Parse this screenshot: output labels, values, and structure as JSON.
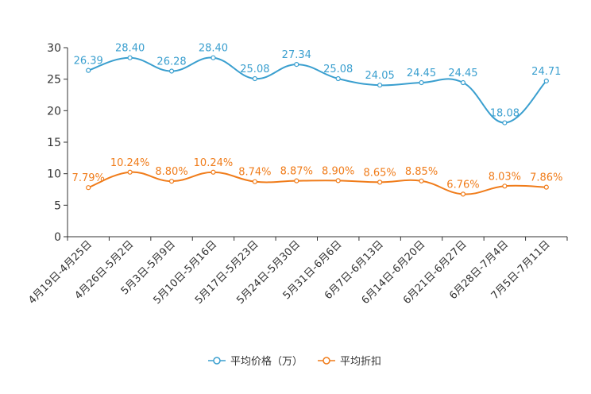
{
  "chart_data": {
    "type": "line",
    "categories": [
      "4月19日-4月25日",
      "4月26日-5月2日",
      "5月3日-5月9日",
      "5月10日-5月16日",
      "5月17日-5月23日",
      "5月24日-5月30日",
      "5月31日-6月6日",
      "6月7日-6月13日",
      "6月14日-6月20日",
      "6月21日-6月27日",
      "6月28日-7月4日",
      "7月5日-7月11日"
    ],
    "ylim": [
      0,
      30
    ],
    "yticks": [
      0,
      5,
      10,
      15,
      20,
      25,
      30
    ],
    "grid": false,
    "legend_position": "bottom-center",
    "series": [
      {
        "name": "平均价格（万）",
        "color": "#3a9fcf",
        "values": [
          26.39,
          28.4,
          26.28,
          28.4,
          25.08,
          27.34,
          25.08,
          24.05,
          24.45,
          24.45,
          18.08,
          24.71
        ],
        "labels": [
          "26.39",
          "28.40",
          "26.28",
          "28.40",
          "25.08",
          "27.34",
          "25.08",
          "24.05",
          "24.45",
          "24.45",
          "18.08",
          "24.71"
        ]
      },
      {
        "name": "平均折扣",
        "color": "#f07c1a",
        "values": [
          7.79,
          10.24,
          8.8,
          10.24,
          8.74,
          8.87,
          8.9,
          8.65,
          8.85,
          6.76,
          8.03,
          7.86
        ],
        "labels": [
          "7.79%",
          "10.24%",
          "8.80%",
          "10.24%",
          "8.74%",
          "8.87%",
          "8.90%",
          "8.65%",
          "8.85%",
          "6.76%",
          "8.03%",
          "7.86%"
        ]
      }
    ]
  }
}
